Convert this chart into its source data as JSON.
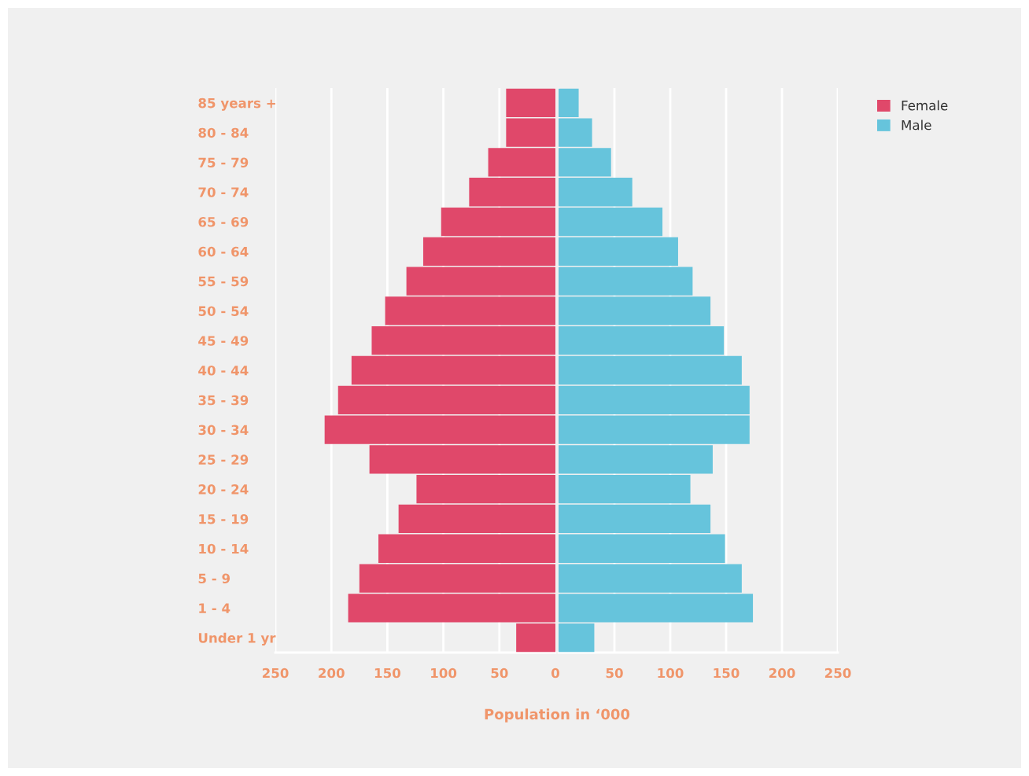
{
  "chart_data": [
    {
      "type": "bar",
      "orientation": "horizontal",
      "xlabel": "Population in ‘000",
      "categories": [
        "85 years +",
        "80 - 84",
        "75 - 79",
        "70 - 74",
        "65 - 69",
        "60 - 64",
        "55 - 59",
        "50 - 54",
        "45 - 49",
        "40 - 44",
        "35 - 39",
        "30 - 34",
        "25 - 29",
        "20 - 24",
        "15 - 19",
        "10 - 14",
        "5 - 9",
        "1 - 4",
        "Under 1 yr"
      ],
      "series": [
        {
          "name": "Female",
          "color": "#e0486a",
          "values": [
            44,
            44,
            60,
            77,
            102,
            118,
            133,
            152,
            164,
            182,
            194,
            206,
            166,
            124,
            140,
            158,
            175,
            185,
            35
          ]
        }
      ],
      "xlim": [
        250,
        0
      ],
      "xticks": [
        250,
        200,
        150,
        100,
        50,
        0
      ],
      "grid": "x",
      "legend": "right"
    },
    {
      "type": "bar",
      "orientation": "horizontal",
      "categories": [
        null,
        null,
        null,
        null,
        null,
        null,
        null,
        null,
        null,
        null,
        null,
        null,
        null,
        null,
        null,
        null,
        null,
        null,
        null
      ],
      "series": [
        {
          "name": "Male",
          "color": "#66c4dc",
          "values": [
            18,
            30,
            47,
            66,
            93,
            107,
            120,
            136,
            148,
            164,
            171,
            171,
            138,
            118,
            136,
            149,
            164,
            174,
            32
          ]
        }
      ],
      "xlim": [
        0,
        250
      ],
      "xticks": [
        {
          "value": 0,
          "label": null
        },
        50,
        100,
        150,
        200,
        250
      ],
      "grid": "x",
      "legend": "right",
      "tick_labels": "x"
    }
  ]
}
